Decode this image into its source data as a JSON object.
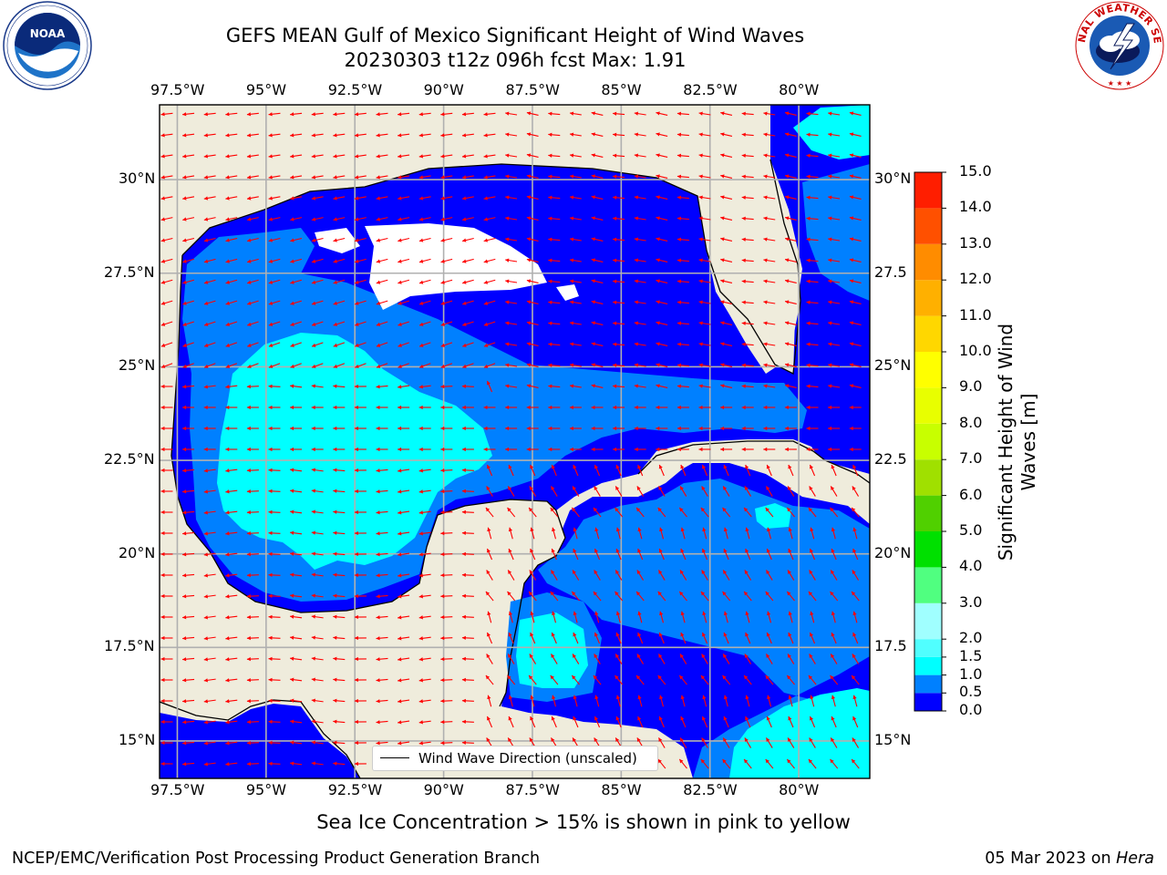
{
  "header": {
    "title_line1": "GEFS MEAN Gulf of Mexico Significant Height of Wind Waves",
    "title_line2": "20230303 t12z 096h fcst   Max: 1.91"
  },
  "logos": {
    "left": "NOAA",
    "right": "NATIONAL WEATHER SERVICE"
  },
  "chart_data": {
    "type": "heatmap",
    "title": "GEFS MEAN Gulf of Mexico Significant Height of Wind Waves",
    "subtitle": "20230303 t12z 096h fcst   Max: 1.91",
    "lon_ticks": [
      "97.5°W",
      "95°W",
      "92.5°W",
      "90°W",
      "87.5°W",
      "85°W",
      "82.5°W",
      "80°W"
    ],
    "lat_ticks_left": [
      "30°N",
      "27.5°N",
      "25°N",
      "22.5°N",
      "20°N",
      "17.5°N",
      "15°N"
    ],
    "lat_ticks_right": [
      "30°N",
      "27.5",
      "25°N",
      "22.5",
      "20°N",
      "17.5",
      "15°N"
    ],
    "lon_range": [
      -98,
      -78
    ],
    "lat_range": [
      14,
      32
    ],
    "grid": true,
    "legend": {
      "entry": "Wind Wave Direction (unscaled)",
      "placement": "lower-center"
    },
    "colorbar": {
      "label": "Significant Height of Wind Waves [m]",
      "levels": [
        "0.0",
        "0.5",
        "1.0",
        "1.5",
        "2.0",
        "3.0",
        "4.0",
        "5.0",
        "6.0",
        "7.0",
        "8.0",
        "9.0",
        "10.0",
        "11.0",
        "12.0",
        "13.0",
        "14.0",
        "15.0"
      ],
      "colors": [
        "#0000ff",
        "#0080ff",
        "#00ffff",
        "#50ffff",
        "#a0ffff",
        "#50ff80",
        "#00e000",
        "#50d000",
        "#a0e000",
        "#c8ff00",
        "#e8ff00",
        "#ffff00",
        "#ffd700",
        "#ffb000",
        "#ff8c00",
        "#ff5000",
        "#ff1e00"
      ]
    },
    "max_value": 1.91
  },
  "note": "Sea Ice Concentration > 15% is shown in pink to yellow",
  "footer": {
    "left": "NCEP/EMC/Verification Post Processing Product Generation Branch",
    "right_date": "05 Mar 2023 on ",
    "right_machine": "Hera"
  },
  "colors": {
    "land": "#efecdc",
    "arrow": "#ff0000",
    "grid": "#b0b0b0"
  }
}
